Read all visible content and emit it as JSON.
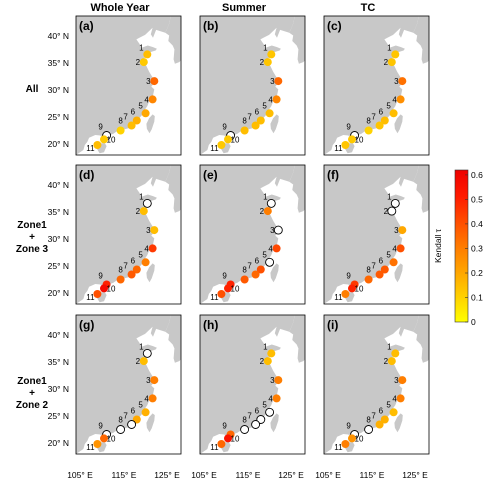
{
  "column_titles": [
    "Whole Year",
    "Summer",
    "TC"
  ],
  "row_labels": [
    [
      "All"
    ],
    [
      "Zone1",
      "+",
      "Zone 3"
    ],
    [
      "Zone1",
      "+",
      "Zone 2"
    ]
  ],
  "panel_labels": [
    "(a)",
    "(b)",
    "(c)",
    "(d)",
    "(e)",
    "(f)",
    "(g)",
    "(h)",
    "(i)"
  ],
  "lat_tick_labels": [
    "40° N",
    "35° N",
    "30° N",
    "25° N",
    "20° N"
  ],
  "lon_tick_labels": [
    "105° E",
    "115° E",
    "125° E"
  ],
  "colorbar": {
    "label": "Kendall τ",
    "ticks": [
      "0",
      "0.1",
      "0.2",
      "0.3",
      "0.4",
      "0.5",
      "0.6"
    ],
    "min": 0,
    "max": 0.62,
    "colors": [
      "#ffff00",
      "#ffd000",
      "#ffa500",
      "#ff7a00",
      "#ff4a00",
      "#ff1a00",
      "#ee0000"
    ]
  },
  "land_color": "#c8c8c8",
  "station_ids": [
    "1",
    "2",
    "3",
    "4",
    "5",
    "6",
    "7",
    "8",
    "9",
    "10",
    "11"
  ],
  "map_data": {
    "stations": [
      {
        "id": "1",
        "lon": 120.3,
        "lat": 36.1
      },
      {
        "id": "2",
        "lon": 119.5,
        "lat": 34.7
      },
      {
        "id": "3",
        "lon": 121.9,
        "lat": 31.3
      },
      {
        "id": "4",
        "lon": 121.5,
        "lat": 28.0
      },
      {
        "id": "5",
        "lon": 119.9,
        "lat": 25.5
      },
      {
        "id": "6",
        "lon": 117.9,
        "lat": 24.2
      },
      {
        "id": "7",
        "lon": 116.7,
        "lat": 23.3
      },
      {
        "id": "8",
        "lon": 114.2,
        "lat": 22.4
      },
      {
        "id": "9",
        "lon": 111.0,
        "lat": 21.5
      },
      {
        "id": "10",
        "lon": 110.4,
        "lat": 20.8
      },
      {
        "id": "11",
        "lon": 108.9,
        "lat": 19.8
      }
    ],
    "panels": [
      {
        "label": "(a)",
        "tau": [
          0.15,
          0.12,
          0.35,
          0.28,
          0.2,
          0.18,
          0.15,
          0.1,
          null,
          0.12,
          0.15
        ]
      },
      {
        "label": "(b)",
        "tau": [
          0.13,
          0.13,
          0.35,
          0.28,
          0.15,
          0.15,
          0.15,
          0.15,
          null,
          0.12,
          0.12
        ]
      },
      {
        "label": "(c)",
        "tau": [
          0.13,
          0.13,
          0.33,
          0.26,
          0.15,
          0.15,
          0.13,
          0.1,
          null,
          0.12,
          0.13
        ]
      },
      {
        "label": "(d)",
        "tau": [
          null,
          0.15,
          0.15,
          0.45,
          0.3,
          0.35,
          0.38,
          0.35,
          0.5,
          0.58,
          0.4
        ]
      },
      {
        "label": "(e)",
        "tau": [
          null,
          0.3,
          null,
          0.42,
          null,
          0.4,
          0.35,
          0.38,
          0.5,
          0.5,
          0.4
        ]
      },
      {
        "label": "(f)",
        "tau": [
          null,
          null,
          0.2,
          0.4,
          0.33,
          0.38,
          0.38,
          0.35,
          0.45,
          0.5,
          0.3
        ]
      },
      {
        "label": "(g)",
        "tau": [
          null,
          0.15,
          0.3,
          0.3,
          0.18,
          0.2,
          null,
          null,
          null,
          0.35,
          0.25
        ]
      },
      {
        "label": "(h)",
        "tau": [
          0.15,
          0.15,
          0.3,
          0.3,
          null,
          null,
          null,
          null,
          0.35,
          0.55,
          0.35
        ]
      },
      {
        "label": "(i)",
        "tau": [
          0.15,
          0.15,
          0.3,
          0.3,
          0.15,
          0.18,
          0.18,
          null,
          null,
          0.25,
          0.3
        ]
      }
    ]
  }
}
